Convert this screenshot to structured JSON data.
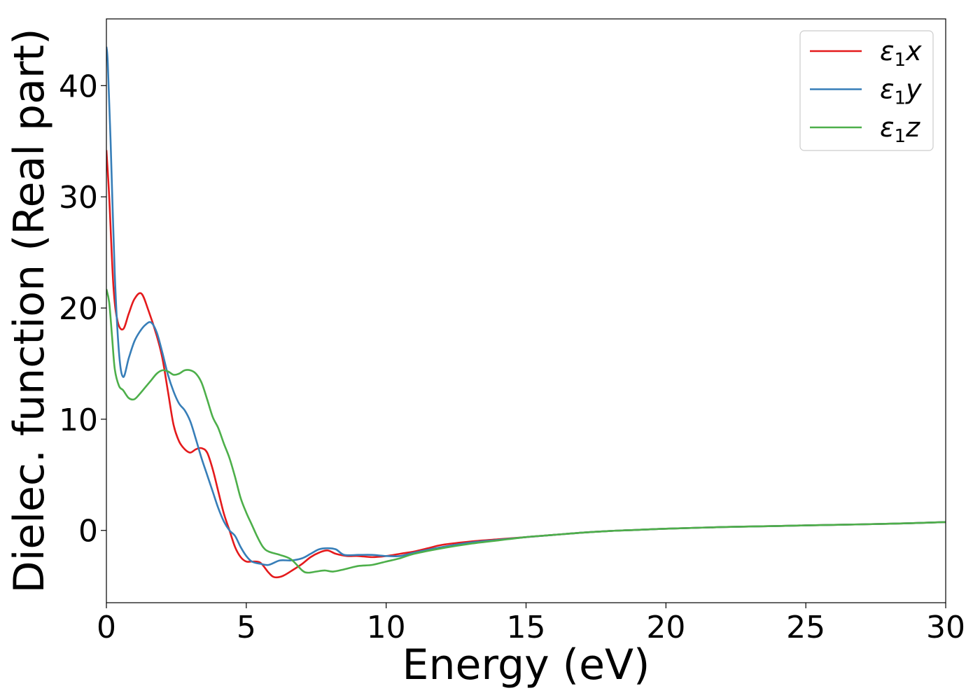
{
  "chart_data": {
    "type": "line",
    "title": "",
    "xlabel": "Energy (eV)",
    "ylabel": "Dielec. function (Real part)",
    "xlim": [
      0,
      30
    ],
    "ylim": [
      -6.5,
      46
    ],
    "xticks": [
      0,
      5,
      10,
      15,
      20,
      25,
      30
    ],
    "yticks": [
      0,
      10,
      20,
      30,
      40
    ],
    "grid": false,
    "legend_position": "top-right",
    "series": [
      {
        "name": "ε₁x",
        "legend_base": "ε",
        "legend_sub": "1",
        "legend_var": "x",
        "color": "#e41a1c",
        "points": [
          [
            0,
            34.2
          ],
          [
            0.1,
            30
          ],
          [
            0.25,
            22
          ],
          [
            0.4,
            18.8
          ],
          [
            0.6,
            18.1
          ],
          [
            0.8,
            19.5
          ],
          [
            1.0,
            20.8
          ],
          [
            1.25,
            21.3
          ],
          [
            1.5,
            19.8
          ],
          [
            1.8,
            17.5
          ],
          [
            2.0,
            15.5
          ],
          [
            2.2,
            12.5
          ],
          [
            2.4,
            9.5
          ],
          [
            2.6,
            8.0
          ],
          [
            2.8,
            7.3
          ],
          [
            3.0,
            7.0
          ],
          [
            3.2,
            7.3
          ],
          [
            3.4,
            7.4
          ],
          [
            3.6,
            7.0
          ],
          [
            3.8,
            5.5
          ],
          [
            4.0,
            3.5
          ],
          [
            4.2,
            1.5
          ],
          [
            4.4,
            0
          ],
          [
            4.6,
            -1.5
          ],
          [
            4.8,
            -2.4
          ],
          [
            5.0,
            -2.8
          ],
          [
            5.2,
            -2.8
          ],
          [
            5.5,
            -2.9
          ],
          [
            5.8,
            -3.8
          ],
          [
            6.0,
            -4.2
          ],
          [
            6.3,
            -4.1
          ],
          [
            6.7,
            -3.5
          ],
          [
            7.0,
            -3.0
          ],
          [
            7.3,
            -2.4
          ],
          [
            7.6,
            -2.0
          ],
          [
            7.9,
            -1.8
          ],
          [
            8.2,
            -2.1
          ],
          [
            8.6,
            -2.3
          ],
          [
            9.0,
            -2.3
          ],
          [
            9.5,
            -2.4
          ],
          [
            10.0,
            -2.3
          ],
          [
            10.5,
            -2.1
          ],
          [
            11.0,
            -1.9
          ],
          [
            11.5,
            -1.6
          ],
          [
            12.0,
            -1.3
          ],
          [
            13.0,
            -1.0
          ],
          [
            14.0,
            -0.8
          ],
          [
            15.0,
            -0.6
          ],
          [
            16.0,
            -0.4
          ],
          [
            17.0,
            -0.2
          ],
          [
            18.0,
            -0.05
          ],
          [
            19.0,
            0.05
          ],
          [
            20.0,
            0.15
          ],
          [
            22.0,
            0.3
          ],
          [
            24.0,
            0.4
          ],
          [
            26.0,
            0.5
          ],
          [
            28.0,
            0.6
          ],
          [
            30.0,
            0.75
          ]
        ]
      },
      {
        "name": "ε₁y",
        "legend_base": "ε",
        "legend_sub": "1",
        "legend_var": "y",
        "color": "#377eb8",
        "points": [
          [
            0,
            43.5
          ],
          [
            0.05,
            42
          ],
          [
            0.15,
            35
          ],
          [
            0.3,
            23
          ],
          [
            0.45,
            16
          ],
          [
            0.6,
            13.8
          ],
          [
            0.8,
            15.5
          ],
          [
            1.0,
            17.0
          ],
          [
            1.2,
            17.9
          ],
          [
            1.4,
            18.5
          ],
          [
            1.6,
            18.7
          ],
          [
            1.8,
            17.8
          ],
          [
            2.0,
            16.0
          ],
          [
            2.2,
            14.0
          ],
          [
            2.4,
            12.5
          ],
          [
            2.6,
            11.4
          ],
          [
            2.8,
            10.8
          ],
          [
            3.0,
            9.8
          ],
          [
            3.2,
            8.2
          ],
          [
            3.4,
            6.5
          ],
          [
            3.6,
            5.0
          ],
          [
            3.8,
            3.5
          ],
          [
            4.0,
            2.0
          ],
          [
            4.2,
            0.8
          ],
          [
            4.4,
            0
          ],
          [
            4.6,
            -0.5
          ],
          [
            4.8,
            -1.5
          ],
          [
            5.0,
            -2.3
          ],
          [
            5.2,
            -2.8
          ],
          [
            5.5,
            -3.0
          ],
          [
            5.8,
            -3.1
          ],
          [
            6.2,
            -2.7
          ],
          [
            6.6,
            -2.7
          ],
          [
            7.0,
            -2.5
          ],
          [
            7.3,
            -2.1
          ],
          [
            7.6,
            -1.7
          ],
          [
            7.9,
            -1.6
          ],
          [
            8.2,
            -1.7
          ],
          [
            8.5,
            -2.2
          ],
          [
            9.0,
            -2.2
          ],
          [
            9.5,
            -2.2
          ],
          [
            10.0,
            -2.3
          ],
          [
            10.5,
            -2.3
          ],
          [
            11.0,
            -2.0
          ],
          [
            12.0,
            -1.5
          ],
          [
            13.0,
            -1.1
          ],
          [
            14.0,
            -0.85
          ],
          [
            15.0,
            -0.6
          ],
          [
            16.0,
            -0.4
          ],
          [
            17.0,
            -0.2
          ],
          [
            18.0,
            -0.05
          ],
          [
            19.0,
            0.05
          ],
          [
            20.0,
            0.15
          ],
          [
            22.0,
            0.3
          ],
          [
            24.0,
            0.4
          ],
          [
            26.0,
            0.5
          ],
          [
            28.0,
            0.6
          ],
          [
            30.0,
            0.75
          ]
        ]
      },
      {
        "name": "ε₁z",
        "legend_base": "ε",
        "legend_sub": "1",
        "legend_var": "z",
        "color": "#4daf4a",
        "points": [
          [
            0,
            21.7
          ],
          [
            0.1,
            20.5
          ],
          [
            0.2,
            17.5
          ],
          [
            0.3,
            14.5
          ],
          [
            0.45,
            13.0
          ],
          [
            0.6,
            12.6
          ],
          [
            0.8,
            11.9
          ],
          [
            1.0,
            11.8
          ],
          [
            1.2,
            12.3
          ],
          [
            1.4,
            12.9
          ],
          [
            1.6,
            13.5
          ],
          [
            1.8,
            14.1
          ],
          [
            2.0,
            14.4
          ],
          [
            2.2,
            14.3
          ],
          [
            2.4,
            14.0
          ],
          [
            2.6,
            14.1
          ],
          [
            2.8,
            14.4
          ],
          [
            3.0,
            14.4
          ],
          [
            3.2,
            14.1
          ],
          [
            3.4,
            13.3
          ],
          [
            3.6,
            11.8
          ],
          [
            3.8,
            10.2
          ],
          [
            4.0,
            9.2
          ],
          [
            4.2,
            7.8
          ],
          [
            4.4,
            6.5
          ],
          [
            4.6,
            4.8
          ],
          [
            4.8,
            2.9
          ],
          [
            5.0,
            1.6
          ],
          [
            5.2,
            0.5
          ],
          [
            5.4,
            -0.6
          ],
          [
            5.6,
            -1.5
          ],
          [
            5.8,
            -1.9
          ],
          [
            6.2,
            -2.2
          ],
          [
            6.6,
            -2.6
          ],
          [
            7.0,
            -3.6
          ],
          [
            7.2,
            -3.8
          ],
          [
            7.5,
            -3.7
          ],
          [
            7.8,
            -3.6
          ],
          [
            8.1,
            -3.7
          ],
          [
            8.5,
            -3.5
          ],
          [
            9.0,
            -3.2
          ],
          [
            9.5,
            -3.1
          ],
          [
            10.0,
            -2.8
          ],
          [
            10.5,
            -2.5
          ],
          [
            11.0,
            -2.1
          ],
          [
            12.0,
            -1.6
          ],
          [
            13.0,
            -1.2
          ],
          [
            14.0,
            -0.9
          ],
          [
            15.0,
            -0.6
          ],
          [
            16.0,
            -0.4
          ],
          [
            17.0,
            -0.2
          ],
          [
            18.0,
            -0.05
          ],
          [
            19.0,
            0.05
          ],
          [
            20.0,
            0.15
          ],
          [
            22.0,
            0.3
          ],
          [
            24.0,
            0.4
          ],
          [
            26.0,
            0.5
          ],
          [
            28.0,
            0.6
          ],
          [
            30.0,
            0.75
          ]
        ]
      }
    ]
  }
}
